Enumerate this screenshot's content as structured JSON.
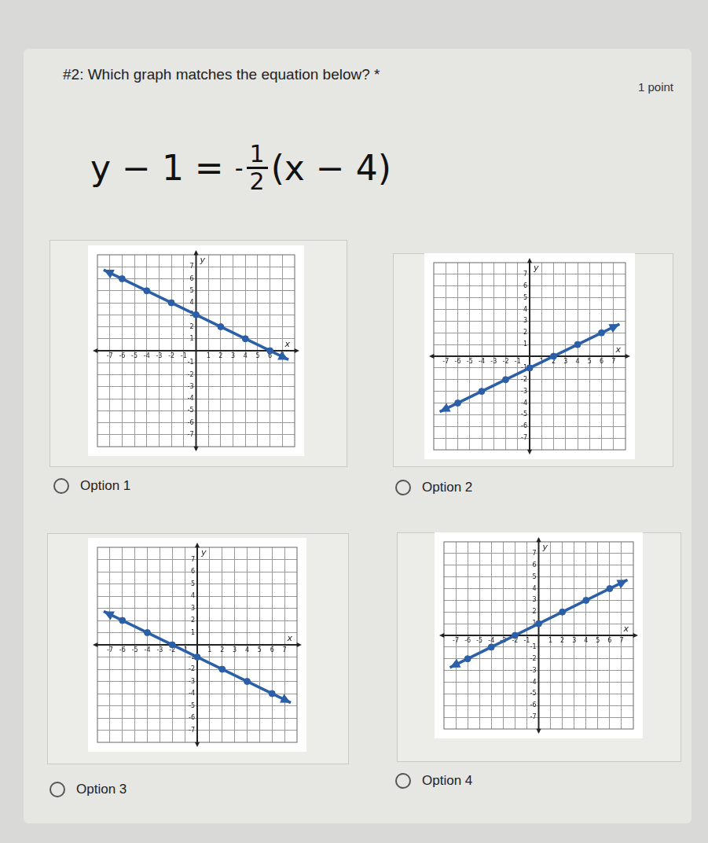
{
  "question": {
    "title": "#2: Which graph matches the equation below?",
    "required_mark": "*",
    "points": "1 point"
  },
  "equation": {
    "lhs": "y − 1 =",
    "sign": "-",
    "numerator": "1",
    "denominator": "2",
    "rhs": "(x − 4)"
  },
  "options": [
    "Option 1",
    "Option 2",
    "Option 3",
    "Option 4"
  ],
  "chart_data": [
    {
      "type": "line",
      "x_label": "x",
      "y_label": "y",
      "grid": true,
      "xlim": [
        -8,
        8
      ],
      "ylim": [
        -8,
        8
      ],
      "xticks": [
        -7,
        -6,
        -5,
        -4,
        -3,
        -2,
        -1,
        1,
        2,
        3,
        4,
        5,
        6,
        7
      ],
      "yticks": [
        -7,
        -6,
        -5,
        -4,
        -3,
        -2,
        -1,
        1,
        2,
        3,
        4,
        5,
        6,
        7
      ],
      "series": [
        {
          "type": "line",
          "marker": "arrow",
          "color": "#2b5fa8",
          "x": [
            -7.5,
            7.5
          ],
          "values": [
            6.75,
            -0.75
          ]
        },
        {
          "type": "scatter",
          "marker": "circle",
          "color": "#2b5fa8",
          "x": [
            -6,
            -4,
            -2,
            0,
            2,
            4,
            6
          ],
          "values": [
            6,
            5,
            4,
            3,
            2,
            1,
            0
          ]
        }
      ]
    },
    {
      "type": "line",
      "x_label": "x",
      "y_label": "y",
      "grid": true,
      "xlim": [
        -8,
        8
      ],
      "ylim": [
        -8,
        8
      ],
      "xticks": [
        -7,
        -6,
        -5,
        -4,
        -3,
        -2,
        -1,
        1,
        2,
        3,
        4,
        5,
        6,
        7
      ],
      "yticks": [
        -7,
        -6,
        -5,
        -4,
        -3,
        -2,
        -1,
        1,
        2,
        3,
        4,
        5,
        6,
        7
      ],
      "series": [
        {
          "type": "line",
          "marker": "arrow",
          "color": "#2b5fa8",
          "x": [
            -7.5,
            7.5
          ],
          "values": [
            -4.75,
            2.75
          ]
        },
        {
          "type": "scatter",
          "marker": "circle",
          "color": "#2b5fa8",
          "x": [
            -6,
            -4,
            -2,
            0,
            2,
            4,
            6
          ],
          "values": [
            -4,
            -3,
            -2,
            -1,
            0,
            1,
            2
          ]
        }
      ]
    },
    {
      "type": "line",
      "x_label": "x",
      "y_label": "y",
      "grid": true,
      "xlim": [
        -8,
        8
      ],
      "ylim": [
        -8,
        8
      ],
      "xticks": [
        -7,
        -6,
        -5,
        -4,
        -3,
        -2,
        -1,
        1,
        2,
        3,
        4,
        5,
        6,
        7
      ],
      "yticks": [
        -7,
        -6,
        -5,
        -4,
        -3,
        -2,
        -1,
        1,
        2,
        3,
        4,
        5,
        6,
        7
      ],
      "series": [
        {
          "type": "line",
          "marker": "arrow",
          "color": "#2b5fa8",
          "x": [
            -7.5,
            7.5
          ],
          "values": [
            2.75,
            -4.75
          ]
        },
        {
          "type": "scatter",
          "marker": "circle",
          "color": "#2b5fa8",
          "x": [
            -6,
            -4,
            -2,
            0,
            2,
            4,
            6
          ],
          "values": [
            2,
            1,
            0,
            -1,
            -2,
            -3,
            -4
          ]
        }
      ]
    },
    {
      "type": "line",
      "x_label": "x",
      "y_label": "y",
      "grid": true,
      "xlim": [
        -8,
        8
      ],
      "ylim": [
        -8,
        8
      ],
      "xticks": [
        -7,
        -6,
        -5,
        -4,
        -3,
        -2,
        -1,
        1,
        2,
        3,
        4,
        5,
        6,
        7
      ],
      "yticks": [
        -7,
        -6,
        -5,
        -4,
        -3,
        -2,
        -1,
        1,
        2,
        3,
        4,
        5,
        6,
        7
      ],
      "series": [
        {
          "type": "line",
          "marker": "arrow",
          "color": "#2b5fa8",
          "x": [
            -7.5,
            7.5
          ],
          "values": [
            -2.75,
            4.75
          ]
        },
        {
          "type": "scatter",
          "marker": "circle",
          "color": "#2b5fa8",
          "x": [
            -6,
            -4,
            -2,
            0,
            2,
            4,
            6
          ],
          "values": [
            -2,
            -1,
            0,
            1,
            2,
            3,
            4
          ]
        }
      ]
    }
  ]
}
